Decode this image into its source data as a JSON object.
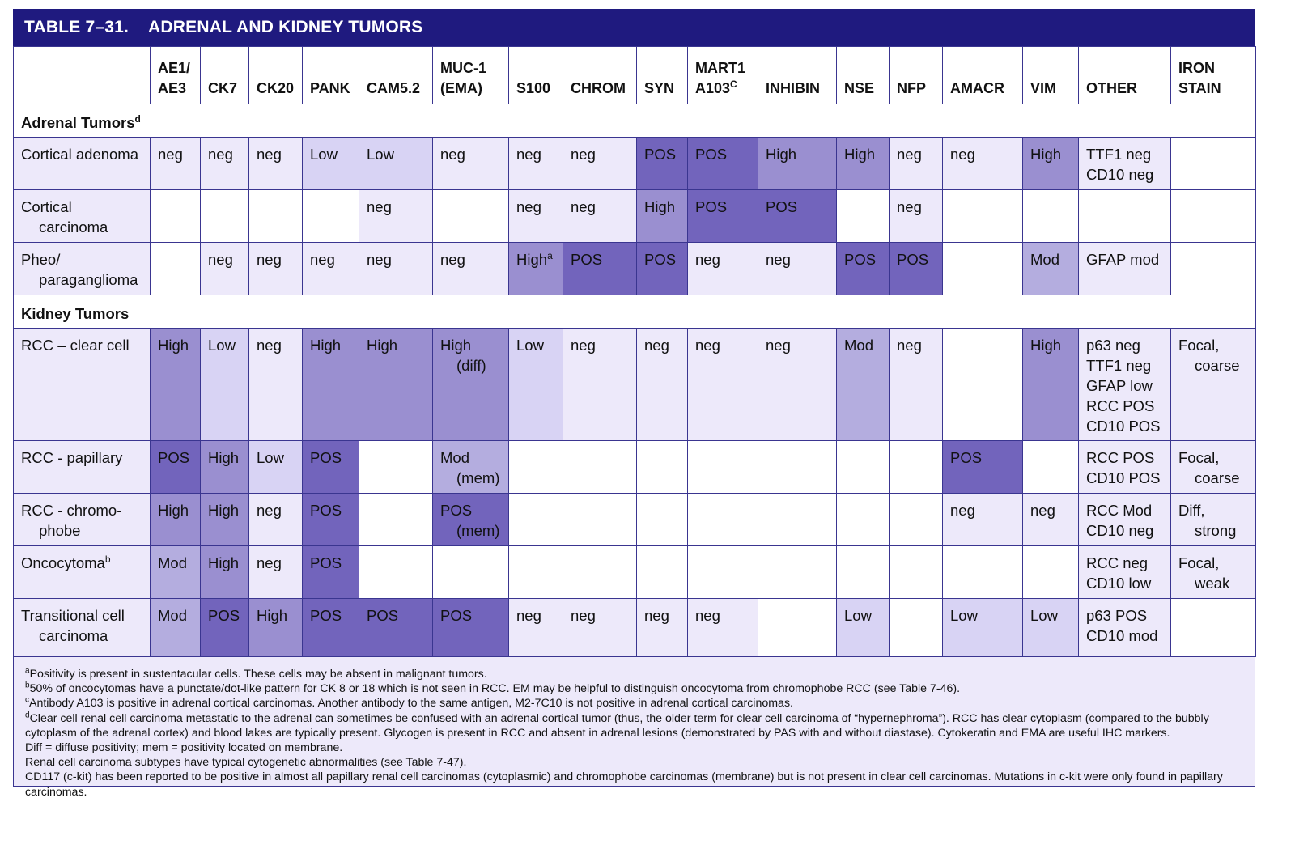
{
  "title": {
    "number": "TABLE 7–31.",
    "text": "ADRENAL AND KIDNEY TUMORS"
  },
  "columns": [
    {
      "line1": "",
      "line2": ""
    },
    {
      "line1": "AE1/",
      "line2": "AE3"
    },
    {
      "line1": "",
      "line2": "CK7"
    },
    {
      "line1": "",
      "line2": "CK20"
    },
    {
      "line1": "",
      "line2": "PANK"
    },
    {
      "line1": "",
      "line2": "CAM5.2"
    },
    {
      "line1": "MUC-1",
      "line2": "(EMA)"
    },
    {
      "line1": "",
      "line2": "S100"
    },
    {
      "line1": "",
      "line2": "CHROM"
    },
    {
      "line1": "",
      "line2": "SYN"
    },
    {
      "line1": "MART1",
      "line2": "A103",
      "sup": "C"
    },
    {
      "line1": "",
      "line2": "INHIBIN"
    },
    {
      "line1": "",
      "line2": "NSE"
    },
    {
      "line1": "",
      "line2": "NFP"
    },
    {
      "line1": "",
      "line2": "AMACR"
    },
    {
      "line1": "",
      "line2": "VIM"
    },
    {
      "line1": "",
      "line2": "OTHER"
    },
    {
      "line1": "IRON",
      "line2": "STAIN"
    }
  ],
  "sections": {
    "adrenal": {
      "label": "Adrenal Tumors",
      "sup": "d"
    },
    "kidney": {
      "label": "Kidney Tumors"
    }
  },
  "rows": {
    "cortical_adenoma": {
      "l1": "Cortical adenoma",
      "l2": "",
      "cells": [
        "neg",
        "neg",
        "neg",
        "Low",
        "Low",
        "neg",
        "neg",
        "neg",
        "POS",
        "POS",
        "High",
        "High",
        "neg",
        "neg",
        "High",
        "TTF1 neg|CD10 neg",
        ""
      ]
    },
    "cortical_carcinoma": {
      "l1": "Cortical",
      "l2": "carcinoma",
      "cells": [
        "",
        "",
        "",
        "",
        "neg",
        "",
        "neg",
        "neg",
        "High",
        "POS",
        "POS",
        "",
        "neg",
        "",
        "",
        "",
        ""
      ]
    },
    "pheo": {
      "l1": "Pheo/",
      "l2": "paraganglioma",
      "cells": [
        "",
        "neg",
        "neg",
        "neg",
        "neg",
        "neg",
        "High",
        "POS",
        "POS",
        "neg",
        "neg",
        "POS",
        "POS",
        "",
        "Mod",
        "GFAP mod",
        ""
      ],
      "s100_sup": "a"
    },
    "rcc_clear": {
      "l1": "RCC – clear cell",
      "l2": "",
      "cells": [
        "High",
        "Low",
        "neg",
        "High",
        "High",
        "High|(diff)",
        "Low",
        "neg",
        "neg",
        "neg",
        "neg",
        "Mod",
        "neg",
        "",
        "High",
        "p63 neg|TTF1 neg|GFAP low|RCC POS|CD10 POS",
        "Focal,|coarse"
      ]
    },
    "rcc_papillary": {
      "l1": "RCC - papillary",
      "l2": "",
      "cells": [
        "POS",
        "High",
        "Low",
        "POS",
        "",
        "Mod|(mem)",
        "",
        "",
        "",
        "",
        "",
        "",
        "",
        "POS",
        "",
        "RCC POS|CD10 POS",
        "Focal,|coarse"
      ]
    },
    "rcc_chromo": {
      "l1": "RCC - chromo-",
      "l2": "phobe",
      "cells": [
        "High",
        "High",
        "neg",
        "POS",
        "",
        "POS|(mem)",
        "",
        "",
        "",
        "",
        "",
        "",
        "",
        "neg",
        "neg",
        "RCC Mod|CD10 neg",
        "Diff,|strong"
      ]
    },
    "oncocytoma": {
      "l1": "Oncocytoma",
      "l2": "",
      "sup": "b",
      "cells": [
        "Mod",
        "High",
        "neg",
        "POS",
        "",
        "",
        "",
        "",
        "",
        "",
        "",
        "",
        "",
        "",
        "",
        "RCC neg|CD10 low",
        "Focal,|weak"
      ]
    },
    "transitional": {
      "l1": "Transitional cell",
      "l2": "carcinoma",
      "cells": [
        "Mod",
        "POS",
        "High",
        "POS",
        "POS",
        "POS",
        "neg",
        "neg",
        "neg",
        "neg",
        "",
        "Low",
        "",
        "Low",
        "Low",
        "p63 POS|CD10 mod",
        ""
      ]
    }
  },
  "footnotes": [
    {
      "sup": "a",
      "text": "Positivity is present in sustentacular cells. These cells may be absent in malignant tumors."
    },
    {
      "sup": "b",
      "text": "50% of oncocytomas have a punctate/dot-like pattern for CK 8 or 18 which is not seen in RCC. EM may be helpful to distinguish oncocytoma from chromophobe RCC (see Table 7-46)."
    },
    {
      "sup": "c",
      "text": "Antibody A103 is positive in adrenal cortical carcinomas. Another antibody to the same antigen, M2-7C10 is not positive in adrenal cortical carcinomas."
    },
    {
      "sup": "d",
      "text": "Clear cell renal cell carcinoma metastatic to the adrenal can sometimes be confused with an adrenal cortical tumor (thus, the older term for clear cell carcinoma of “hypernephroma”). RCC has clear cytoplasm (compared to the bubbly cytoplasm of the adrenal cortex) and blood lakes are typically present. Glycogen is present in RCC and absent in adrenal lesions (demonstrated by PAS with and without diastase). Cytokeratin and EMA are useful IHC markers."
    },
    {
      "sup": "",
      "text": "Diff = diffuse positivity; mem = positivity located on membrane."
    },
    {
      "sup": "",
      "text": "Renal cell carcinoma subtypes have typical cytogenetic abnormalities (see Table 7-47)."
    },
    {
      "sup": "",
      "text": "CD117 (c-kit) has been reported to be positive in almost all papillary renal cell carcinomas (cytoplasmic) and chromophobe carcinomas (membrane) but is not present in clear cell carcinomas. Mutations in c-kit were only found in papillary carcinomas."
    }
  ],
  "colors": {
    "header_bar": "#1f1a7f",
    "border": "#3a3590",
    "light": "#ede9fa",
    "low": "#d8d3f4",
    "mod": "#b4addf",
    "high": "#9a8fd0",
    "pos": "#7264bc"
  }
}
